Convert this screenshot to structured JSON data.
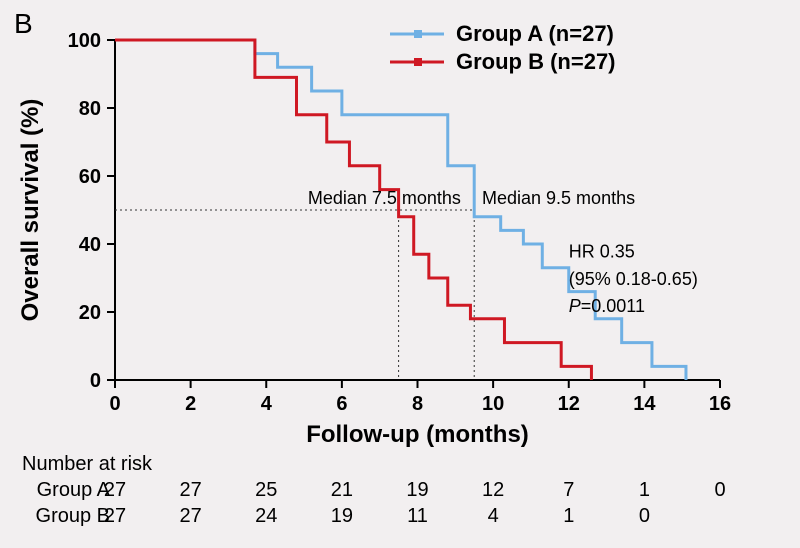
{
  "panel_label": "B",
  "background_color": "#f2eff0",
  "chart": {
    "type": "kaplan-meier",
    "x": {
      "label": "Follow-up (months)",
      "min": 0,
      "max": 16,
      "ticks": [
        0,
        2,
        4,
        6,
        8,
        10,
        12,
        14,
        16
      ]
    },
    "y": {
      "label": "Overall survival (%)",
      "min": 0,
      "max": 100,
      "ticks": [
        0,
        20,
        40,
        60,
        80,
        100
      ]
    },
    "axis_color": "#000000",
    "axis_width": 2,
    "tick_len": 8,
    "series": [
      {
        "name": "Group A (n=27)",
        "color": "#6fb0e4",
        "line_width": 3,
        "steps": [
          [
            0,
            100
          ],
          [
            3.6,
            100
          ],
          [
            3.7,
            96
          ],
          [
            4.3,
            96
          ],
          [
            4.3,
            92
          ],
          [
            5.2,
            92
          ],
          [
            5.2,
            85
          ],
          [
            6.0,
            85
          ],
          [
            6.0,
            78
          ],
          [
            8.8,
            78
          ],
          [
            8.8,
            63
          ],
          [
            9.5,
            63
          ],
          [
            9.5,
            48
          ],
          [
            10.2,
            48
          ],
          [
            10.2,
            44
          ],
          [
            10.8,
            44
          ],
          [
            10.8,
            40
          ],
          [
            11.3,
            40
          ],
          [
            11.3,
            33
          ],
          [
            12.0,
            33
          ],
          [
            12.0,
            26
          ],
          [
            12.7,
            26
          ],
          [
            12.7,
            18
          ],
          [
            13.4,
            18
          ],
          [
            13.4,
            11
          ],
          [
            14.2,
            11
          ],
          [
            14.2,
            4
          ],
          [
            15.0,
            4
          ],
          [
            15.1,
            0
          ]
        ]
      },
      {
        "name": "Group B (n=27)",
        "color": "#cf1823",
        "line_width": 3,
        "steps": [
          [
            0,
            100
          ],
          [
            3.7,
            100
          ],
          [
            3.7,
            89
          ],
          [
            4.8,
            89
          ],
          [
            4.8,
            78
          ],
          [
            5.6,
            78
          ],
          [
            5.6,
            70
          ],
          [
            6.2,
            70
          ],
          [
            6.2,
            63
          ],
          [
            7.0,
            63
          ],
          [
            7.0,
            56
          ],
          [
            7.5,
            56
          ],
          [
            7.5,
            48
          ],
          [
            7.9,
            48
          ],
          [
            7.9,
            37
          ],
          [
            8.3,
            37
          ],
          [
            8.3,
            30
          ],
          [
            8.8,
            30
          ],
          [
            8.8,
            22
          ],
          [
            9.4,
            22
          ],
          [
            9.4,
            18
          ],
          [
            10.3,
            18
          ],
          [
            10.3,
            11
          ],
          [
            11.8,
            11
          ],
          [
            11.8,
            4
          ],
          [
            12.5,
            4
          ],
          [
            12.6,
            0
          ]
        ]
      }
    ],
    "medians": {
      "a": {
        "x": 9.5,
        "label": "Median 9.5 months"
      },
      "b": {
        "x": 7.5,
        "label": "Median 7.5 months"
      },
      "y": 50,
      "line_color": "#333333"
    },
    "stats": {
      "hr": "HR 0.35",
      "ci": "(95% 0.18-0.65)",
      "p": "P=0.0011"
    },
    "legend": {
      "items": [
        "Group A (n=27)",
        "Group B (n=27)"
      ],
      "colors": [
        "#6fb0e4",
        "#cf1823"
      ]
    }
  },
  "risk_table": {
    "header": "Number at risk",
    "x_points": [
      0,
      2,
      4,
      6,
      8,
      10,
      12,
      14,
      16
    ],
    "rows": [
      {
        "label": "Group A",
        "values": [
          27,
          27,
          25,
          21,
          19,
          12,
          7,
          1,
          0
        ]
      },
      {
        "label": "Group B",
        "values": [
          27,
          27,
          24,
          19,
          11,
          4,
          1,
          0,
          null
        ]
      }
    ]
  },
  "fonts": {
    "axis_label_pt": 24,
    "tick_pt": 20,
    "legend_pt": 22,
    "annot_pt": 18
  }
}
